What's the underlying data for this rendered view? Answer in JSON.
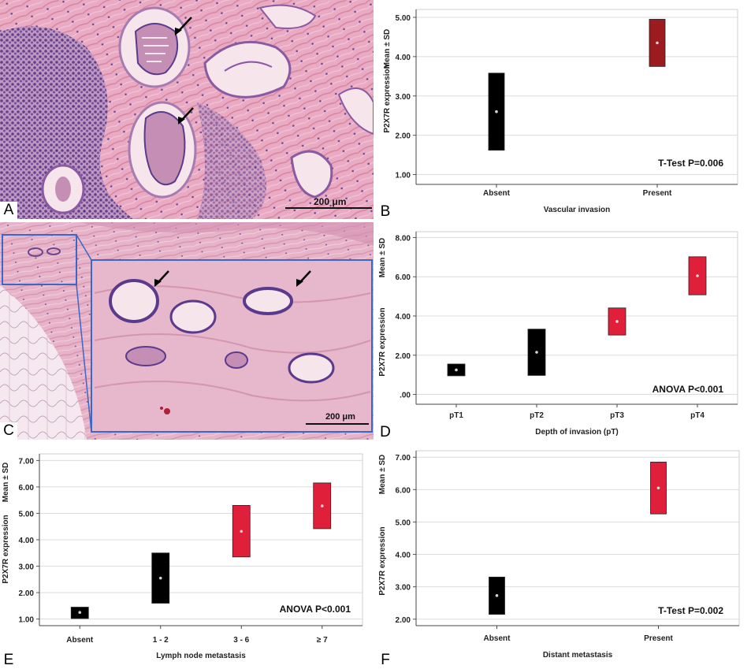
{
  "panels": {
    "A": {
      "letter": "A",
      "scale": "200 μm"
    },
    "B": {
      "letter": "B"
    },
    "C": {
      "letter": "C",
      "scale": "200 μm"
    },
    "D": {
      "letter": "D"
    },
    "E": {
      "letter": "E"
    },
    "F": {
      "letter": "F"
    }
  },
  "colors": {
    "absent": "#000000",
    "present_dark_red": "#9b1b1f",
    "present_red": "#e0203a",
    "grid": "#dcdcdc",
    "tissue_pink": "#e7a9c2",
    "nuclei": "#5b3c8c",
    "inset_border": "#3b67c6"
  },
  "chart_data": [
    {
      "id": "B",
      "type": "range",
      "xlabel": "Vascular invasion",
      "ylabel": "P2X7R expression",
      "ylabel2": "Mean ± SD",
      "ylim": [
        0.75,
        5.2
      ],
      "ticks": [
        "1.00",
        "2.00",
        "3.00",
        "4.00",
        "5.00"
      ],
      "tick_values": [
        1,
        2,
        3,
        4,
        5
      ],
      "categories": [
        "Absent",
        "Present"
      ],
      "mean": [
        2.6,
        4.35
      ],
      "lower": [
        1.62,
        3.75
      ],
      "upper": [
        3.58,
        4.95
      ],
      "bar_colors": [
        "#000000",
        "#9b1b1f"
      ],
      "annotation": "T-Test   P=0.006"
    },
    {
      "id": "D",
      "type": "range",
      "xlabel": "Depth of invasion (pT)",
      "ylabel": "P2X7R expression",
      "ylabel2": "Mean ± SD",
      "ylim": [
        -0.5,
        8.3
      ],
      "ticks": [
        ".00",
        "2.00",
        "4.00",
        "6.00",
        "8.00"
      ],
      "tick_values": [
        0,
        2,
        4,
        6,
        8
      ],
      "categories": [
        "pT1",
        "pT2",
        "pT3",
        "pT4"
      ],
      "mean": [
        1.25,
        2.15,
        3.72,
        6.05
      ],
      "lower": [
        0.95,
        0.97,
        3.03,
        5.08
      ],
      "upper": [
        1.55,
        3.33,
        4.41,
        7.02
      ],
      "bar_colors": [
        "#000000",
        "#000000",
        "#e0203a",
        "#e0203a"
      ],
      "annotation": "ANOVA   P<0.001"
    },
    {
      "id": "E",
      "type": "range",
      "xlabel": "Lymph node metastasis",
      "ylabel": "P2X7R expression",
      "ylabel2": "Mean ± SD",
      "ylim": [
        0.75,
        7.25
      ],
      "ticks": [
        "1.00",
        "2.00",
        "3.00",
        "4.00",
        "5.00",
        "6.00",
        "7.00"
      ],
      "tick_values": [
        1,
        2,
        3,
        4,
        5,
        6,
        7
      ],
      "categories": [
        "Absent",
        "1 - 2",
        "3 - 6",
        "≥ 7"
      ],
      "mean": [
        1.25,
        2.55,
        4.32,
        5.28
      ],
      "lower": [
        1.02,
        1.6,
        3.35,
        4.42
      ],
      "upper": [
        1.45,
        3.5,
        5.3,
        6.15
      ],
      "bar_colors": [
        "#000000",
        "#000000",
        "#e0203a",
        "#e0203a"
      ],
      "annotation": "ANOVA   P<0.001"
    },
    {
      "id": "F",
      "type": "range",
      "xlabel": "Distant metastasis",
      "ylabel": "P2X7R expression",
      "ylabel2": "Mean ± SD",
      "ylim": [
        1.8,
        7.2
      ],
      "ticks": [
        "2.00",
        "3.00",
        "4.00",
        "5.00",
        "6.00",
        "7.00"
      ],
      "tick_values": [
        2,
        3,
        4,
        5,
        6,
        7
      ],
      "categories": [
        "Absent",
        "Present"
      ],
      "mean": [
        2.73,
        6.05
      ],
      "lower": [
        2.15,
        5.25
      ],
      "upper": [
        3.3,
        6.85
      ],
      "bar_colors": [
        "#000000",
        "#e0203a"
      ],
      "annotation": "T-Test   P=0.002"
    }
  ]
}
